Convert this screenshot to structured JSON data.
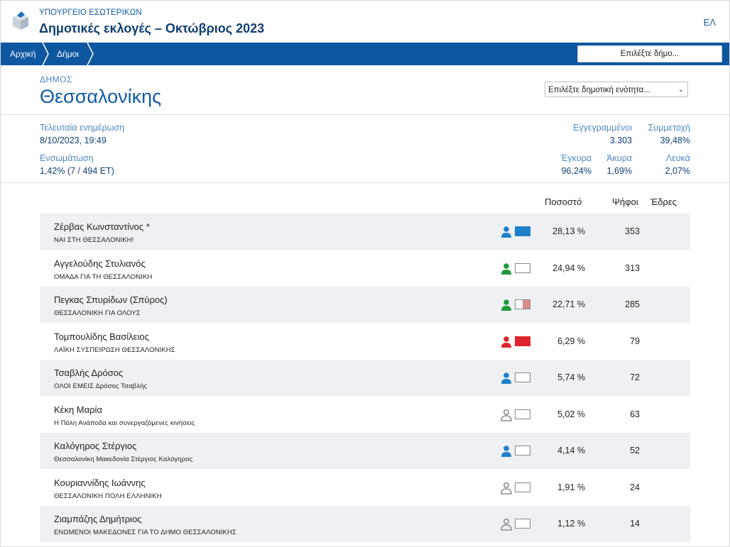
{
  "header": {
    "ministry": "ΥΠΟΥΡΓΕΙΟ ΕΣΩΤΕΡΙΚΩΝ",
    "title": "Δημοτικές εκλογές – Οκτώβριος 2023",
    "language": "ΕΛ"
  },
  "nav": {
    "breadcrumbs": [
      "Αρχική",
      "Δήμοι"
    ],
    "municipality_select": "Επιλέξτε δήμο..."
  },
  "municipality": {
    "kind": "ΔΗΜΟΣ",
    "name": "Θεσσαλονίκης",
    "unit_select": "Επιλέξτε δημοτική ενότητα..."
  },
  "stats": {
    "last_update_label": "Τελευταία ενημέρωση",
    "last_update_value": "8/10/2023, 19:49",
    "integration_label": "Ενσωμάτωση",
    "integration_value": "1,42% (7 / 494 ΕΤ)",
    "registered_label": "Εγγεγραμμένοι",
    "registered_value": "3.303",
    "turnout_label": "Συμμετοχή",
    "turnout_value": "39,48%",
    "valid_label": "Έγκυρα",
    "valid_value": "96,24%",
    "invalid_label": "Άκυρα",
    "invalid_value": "1,69%",
    "blank_label": "Λευκά",
    "blank_value": "2,07%"
  },
  "table": {
    "headers": {
      "percent": "Ποσοστό",
      "votes": "Ψήφοι",
      "seats": "Έδρες"
    },
    "rows": [
      {
        "name": "Ζέρβας Κωνσταντίνος *",
        "party": "ΝΑΙ ΣΤΗ ΘΕΣΣΑΛΟΝΙΚΗ!",
        "percent": "28,13 %",
        "votes": "353",
        "person_color": "#1f7fc8",
        "swatch": [
          "#1f7fc8",
          "#1f7fc8"
        ]
      },
      {
        "name": "Αγγελούδης Στυλιανός",
        "party": "ΟΜΑΔΑ ΓΙΑ ΤΗ ΘΕΣΣΑΛΟΝΙΚΗ",
        "percent": "24,94 %",
        "votes": "313",
        "person_color": "#1e9b3c",
        "swatch": [
          "#ffffff",
          "#ffffff"
        ]
      },
      {
        "name": "Πεγκας Σπυρίδων (Σπύρος)",
        "party": "ΘΕΣΣΑΛΟΝΙΚΗ ΓΙΑ ΟΛΟΥΣ",
        "percent": "22,71 %",
        "votes": "285",
        "person_color": "#1e9b3c",
        "swatch": [
          "#ffffff",
          "#d98b8b"
        ]
      },
      {
        "name": "Τομπουλίδης Βασίλειος",
        "party": "ΛΑΪΚΗ ΣΥΣΠΕΙΡΩΣΗ ΘΕΣΣΑΛΟΝΙΚΗΣ",
        "percent": "6,29 %",
        "votes": "79",
        "person_color": "#e0242b",
        "swatch": [
          "#e0242b",
          "#e0242b"
        ]
      },
      {
        "name": "Τσαβλής Δρόσος",
        "party": "ΟΛΟΙ ΕΜΕΙΣ Δρόσος Τσαβλής",
        "percent": "5,74 %",
        "votes": "72",
        "person_color": "#1f7fc8",
        "swatch": [
          "#ffffff",
          "#ffffff"
        ]
      },
      {
        "name": "Κέκη Μαρία",
        "party": "Η Πόλη Ανάποδα και συνεργαζόμενες κινήσεις",
        "percent": "5,02 %",
        "votes": "63",
        "person_color": "outline",
        "swatch": [
          "#ffffff",
          "#ffffff"
        ]
      },
      {
        "name": "Καλόγηρος Στέργιος",
        "party": "Θεσσαλονίκη Μακεδονία Στέργιος Καλόγηρος",
        "percent": "4,14 %",
        "votes": "52",
        "person_color": "#1f7fc8",
        "swatch": [
          "#ffffff",
          "#ffffff"
        ]
      },
      {
        "name": "Κουριαννίδης Ιωάννης",
        "party": "ΘΕΣΣΑΛΟΝΙΚΗ ΠΟΛΗ ΕΛΛΗΝΙΚΗ",
        "percent": "1,91 %",
        "votes": "24",
        "person_color": "outline",
        "swatch": [
          "#ffffff",
          "#ffffff"
        ]
      },
      {
        "name": "Ζιαμπάζης Δημήτριος",
        "party": "ΕΝΩΜΕΝΟΙ ΜΑΚΕΔΟΝΕΣ ΓΙΑ ΤΟ ΔΗΜΟ ΘΕΣΣΑΛΟΝΙΚΗΣ",
        "percent": "1,12 %",
        "votes": "14",
        "person_color": "outline",
        "swatch": [
          "#ffffff",
          "#ffffff"
        ]
      }
    ]
  }
}
